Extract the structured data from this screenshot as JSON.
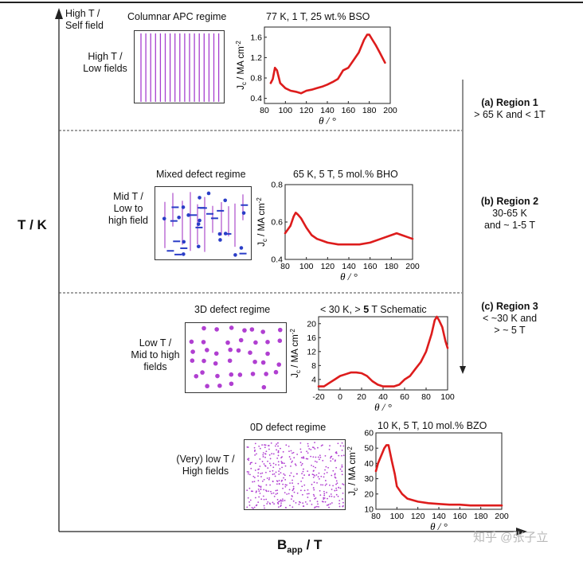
{
  "axes": {
    "y_label": "T / K",
    "x_label_main": "B",
    "x_label_sub": "app",
    "x_label_unit": " / T"
  },
  "regions": [
    {
      "title_prefix": "(a) ",
      "title": "Region 1",
      "desc": "> 65 K and < 1T"
    },
    {
      "title_prefix": "(b) ",
      "title": "Region 2",
      "desc_line1": "30-65 K",
      "desc_line2": "and ~ 1-5 T"
    },
    {
      "title_prefix": "(c) ",
      "title": "Region 3",
      "desc_line1": "< ~30 K and",
      "desc_line2": "> ~ 5 T"
    }
  ],
  "corner_labels": {
    "top_line1": "High T /",
    "top_line2": "Self field"
  },
  "regimes": [
    {
      "name": "Columnar APC regime",
      "cond_line1": "High T /",
      "cond_line2": "Low fields"
    },
    {
      "name": "Mixed defect regime",
      "cond_line1": "Mid T /",
      "cond_line2": "Low to",
      "cond_line3": "high field"
    },
    {
      "name": "3D defect regime",
      "cond_line1": "Low T /",
      "cond_line2": "Mid to high",
      "cond_line3": "fields"
    },
    {
      "name": "0D defect regime",
      "cond_line1": "(Very) low T /",
      "cond_line2": "High fields"
    }
  ],
  "watermark": "知乎 @张子立",
  "colors": {
    "curve": "#dd1c1c",
    "columnar": "#a63fcf",
    "mixed_line": "#b45bd0",
    "mixed_blue": "#2a3dc7",
    "dots": "#b03fd1",
    "axis": "#222222"
  },
  "chart_data": [
    {
      "type": "line",
      "title": "77 K, 1 T, 25 wt.% BSO",
      "xlabel": "θ / °",
      "ylabel_main": "J",
      "ylabel_sub": "c",
      "ylabel_rest": " / MA cm",
      "xlim": [
        80,
        200
      ],
      "ylim": [
        0.3,
        1.8
      ],
      "xticks": [
        80,
        100,
        120,
        140,
        160,
        180,
        200
      ],
      "yticks": [
        0.4,
        0.8,
        1.2,
        1.6
      ],
      "x": [
        86,
        88,
        90,
        92,
        95,
        100,
        105,
        110,
        115,
        120,
        125,
        130,
        135,
        140,
        145,
        150,
        155,
        160,
        165,
        170,
        175,
        178,
        180,
        183,
        186,
        190,
        195
      ],
      "y": [
        0.7,
        0.78,
        1.0,
        0.95,
        0.7,
        0.6,
        0.55,
        0.53,
        0.5,
        0.55,
        0.57,
        0.6,
        0.63,
        0.67,
        0.72,
        0.78,
        0.95,
        1.0,
        1.15,
        1.3,
        1.55,
        1.65,
        1.65,
        1.55,
        1.45,
        1.3,
        1.1
      ]
    },
    {
      "type": "line",
      "title": "65 K, 5 T, 5 mol.% BHO",
      "xlabel": "θ / °",
      "ylabel_main": "J",
      "ylabel_sub": "c",
      "ylabel_rest": " / MA cm",
      "xlim": [
        80,
        200
      ],
      "ylim": [
        0.4,
        0.8
      ],
      "xticks": [
        80,
        100,
        120,
        140,
        160,
        180,
        200
      ],
      "yticks": [
        0.4,
        0.6,
        0.8
      ],
      "x": [
        80,
        85,
        88,
        90,
        92,
        95,
        100,
        105,
        110,
        115,
        120,
        130,
        140,
        150,
        160,
        170,
        180,
        185,
        190,
        195,
        200
      ],
      "y": [
        0.54,
        0.58,
        0.63,
        0.65,
        0.64,
        0.62,
        0.57,
        0.53,
        0.51,
        0.5,
        0.49,
        0.48,
        0.48,
        0.48,
        0.49,
        0.51,
        0.53,
        0.54,
        0.53,
        0.52,
        0.51
      ]
    },
    {
      "type": "line",
      "title_prefix": "< 30 K, > ",
      "title_bold": "5",
      "title_suffix": " T Schematic",
      "xlabel": "θ / °",
      "ylabel_main": "J",
      "ylabel_sub": "c",
      "ylabel_rest": " / MA cm",
      "xlim": [
        -20,
        100
      ],
      "ylim": [
        1,
        22
      ],
      "xticks": [
        -20,
        0,
        20,
        40,
        60,
        80,
        100
      ],
      "yticks": [
        4,
        8,
        12,
        16,
        20
      ],
      "x": [
        -20,
        -15,
        -10,
        -5,
        0,
        5,
        10,
        15,
        20,
        25,
        30,
        35,
        40,
        45,
        50,
        55,
        60,
        65,
        70,
        75,
        80,
        85,
        88,
        90,
        92,
        95,
        98,
        100
      ],
      "y": [
        2,
        2,
        3,
        4,
        5,
        5.5,
        6,
        6,
        5.8,
        5,
        3.5,
        2.5,
        2,
        2,
        2,
        2.5,
        4,
        5,
        7,
        9,
        12,
        17,
        21,
        22,
        21,
        19,
        15,
        13
      ]
    },
    {
      "type": "line",
      "title": "10 K, 5 T, 10 mol.% BZO",
      "xlabel": "θ / °",
      "ylabel_main": "J",
      "ylabel_sub": "c",
      "ylabel_rest": " / MA cm",
      "xlim": [
        80,
        200
      ],
      "ylim": [
        10,
        60
      ],
      "xticks": [
        80,
        100,
        120,
        140,
        160,
        180,
        200
      ],
      "yticks": [
        10,
        20,
        30,
        40,
        50,
        60
      ],
      "x": [
        80,
        82,
        85,
        88,
        90,
        92,
        95,
        98,
        100,
        105,
        110,
        120,
        130,
        140,
        150,
        160,
        170,
        180,
        190,
        200
      ],
      "y": [
        35,
        40,
        45,
        50,
        52,
        52,
        42,
        33,
        25,
        20,
        17,
        15,
        14,
        13.5,
        13,
        13,
        12.5,
        12.5,
        12.5,
        12.5
      ]
    }
  ]
}
